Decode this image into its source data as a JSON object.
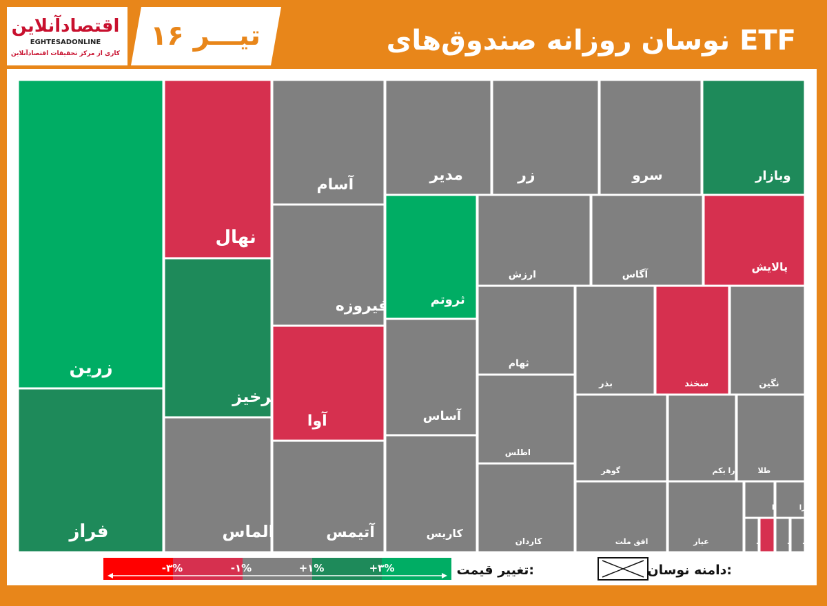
{
  "logo": {
    "name": "اقتصادآنلاین",
    "latin": "EGHTESADONLINE",
    "tagline": "کاری از مرکز تحقیقات اقتصادآنلاین"
  },
  "header": {
    "date": "۱۶ تیـــر",
    "title": "نوسان روزانه صندوق‌های ETF"
  },
  "tiles": [
    {
      "label": "زرین",
      "color": "#00ad64"
    },
    {
      "label": "فراز",
      "color": "#1e8a5a"
    },
    {
      "label": "نهال",
      "color": "#d6304f"
    },
    {
      "label": "سحرخیز",
      "color": "#1e8a5a"
    },
    {
      "label": "الماس",
      "color": "#808080"
    },
    {
      "label": "آسام",
      "color": "#808080"
    },
    {
      "label": "فیروزه",
      "color": "#808080"
    },
    {
      "label": "آوا",
      "color": "#d6304f"
    },
    {
      "label": "آتیمس",
      "color": "#808080"
    },
    {
      "label": "مدیر",
      "color": "#808080"
    },
    {
      "label": "زر",
      "color": "#808080"
    },
    {
      "label": "سرو",
      "color": "#808080"
    },
    {
      "label": "وبازار",
      "color": "#1e8a5a"
    },
    {
      "label": "ثروتم",
      "color": "#00ad64"
    },
    {
      "label": "آساس",
      "color": "#808080"
    },
    {
      "label": "کاریس",
      "color": "#808080"
    },
    {
      "label": "ارزش",
      "color": "#808080"
    },
    {
      "label": "آگاس",
      "color": "#808080"
    },
    {
      "label": "پالایش",
      "color": "#d6304f"
    },
    {
      "label": "ثهام",
      "color": "#808080"
    },
    {
      "label": "اطلس",
      "color": "#808080"
    },
    {
      "label": "کاردان",
      "color": "#808080"
    },
    {
      "label": "بذر",
      "color": "#808080"
    },
    {
      "label": "سخند",
      "color": "#d6304f"
    },
    {
      "label": "نگین",
      "color": "#808080"
    },
    {
      "label": "گوهر",
      "color": "#808080"
    },
    {
      "label": "دارا یکم",
      "color": "#808080"
    },
    {
      "label": "طلا",
      "color": "#808080"
    },
    {
      "label": "افق ملت",
      "color": "#808080"
    },
    {
      "label": "عیار",
      "color": "#808080"
    },
    {
      "label": "فیروزا",
      "color": "#808080"
    },
    {
      "label": "دارا",
      "color": "#808080"
    },
    {
      "label": "...",
      "color": "#808080"
    },
    {
      "color": "#d6304f"
    },
    {
      "label": "...",
      "color": "#808080"
    },
    {
      "label": "...",
      "color": "#808080"
    }
  ],
  "legend": {
    "price_change": "تغییر قیمت:",
    "range": "دامنه نوسان:",
    "scale": [
      "-۳%",
      "-۱%",
      "+۱%",
      "+۳%"
    ]
  }
}
